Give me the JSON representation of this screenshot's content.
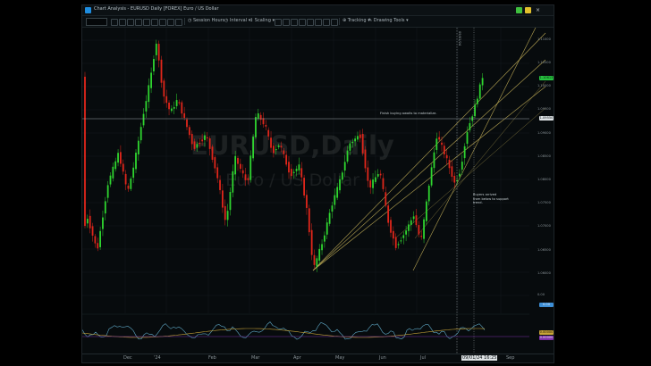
{
  "window": {
    "title": "Chart Analysis - EURUSD Daily [FOREX] Euro / US Dollar",
    "controls": {
      "green": "#3fbf3f",
      "yellow": "#e3c02c",
      "close_symbol": "×"
    }
  },
  "toolbar": {
    "symbol_value": "",
    "session_hours": "Session Hours",
    "interval": "Interval",
    "scaling": "Scaling",
    "tracking": "Tracking",
    "drawing_tools": "Drawing Tools"
  },
  "chart": {
    "watermark_symbol": "EURUSD,Daily",
    "watermark_name": "Euro / US Dollar",
    "vertical_line_label": "09/01/24",
    "annotation_top": "Finish buying awaits to materialize.",
    "annotation_bottom": [
      "Buyers arrived",
      "from below to support",
      "trend."
    ],
    "price_labels": [
      "1.11000",
      "1.10500",
      "1.10000",
      "1.09500",
      "1.09000",
      "1.08500",
      "1.08000",
      "1.07500",
      "1.07000",
      "1.06500",
      "1.06000"
    ],
    "price_tags": {
      "current": "1.10613",
      "crosshair": "1.09550"
    },
    "indicator_labels": [
      "0.00",
      "0.00",
      "0.00000",
      "0.00000"
    ],
    "colors": {
      "up": "#2fd52f",
      "down": "#e0261b",
      "channel": "#c9b45a",
      "bg": "#070b0d",
      "osc": "#5fa9c7",
      "signal": "#c9a53a"
    }
  },
  "xaxis": {
    "labels": [
      "Dec",
      "'24",
      "Feb",
      "Mar",
      "Apr",
      "May",
      "Jun",
      "Jul",
      "09/01/24 16:25",
      "Sep"
    ]
  }
}
